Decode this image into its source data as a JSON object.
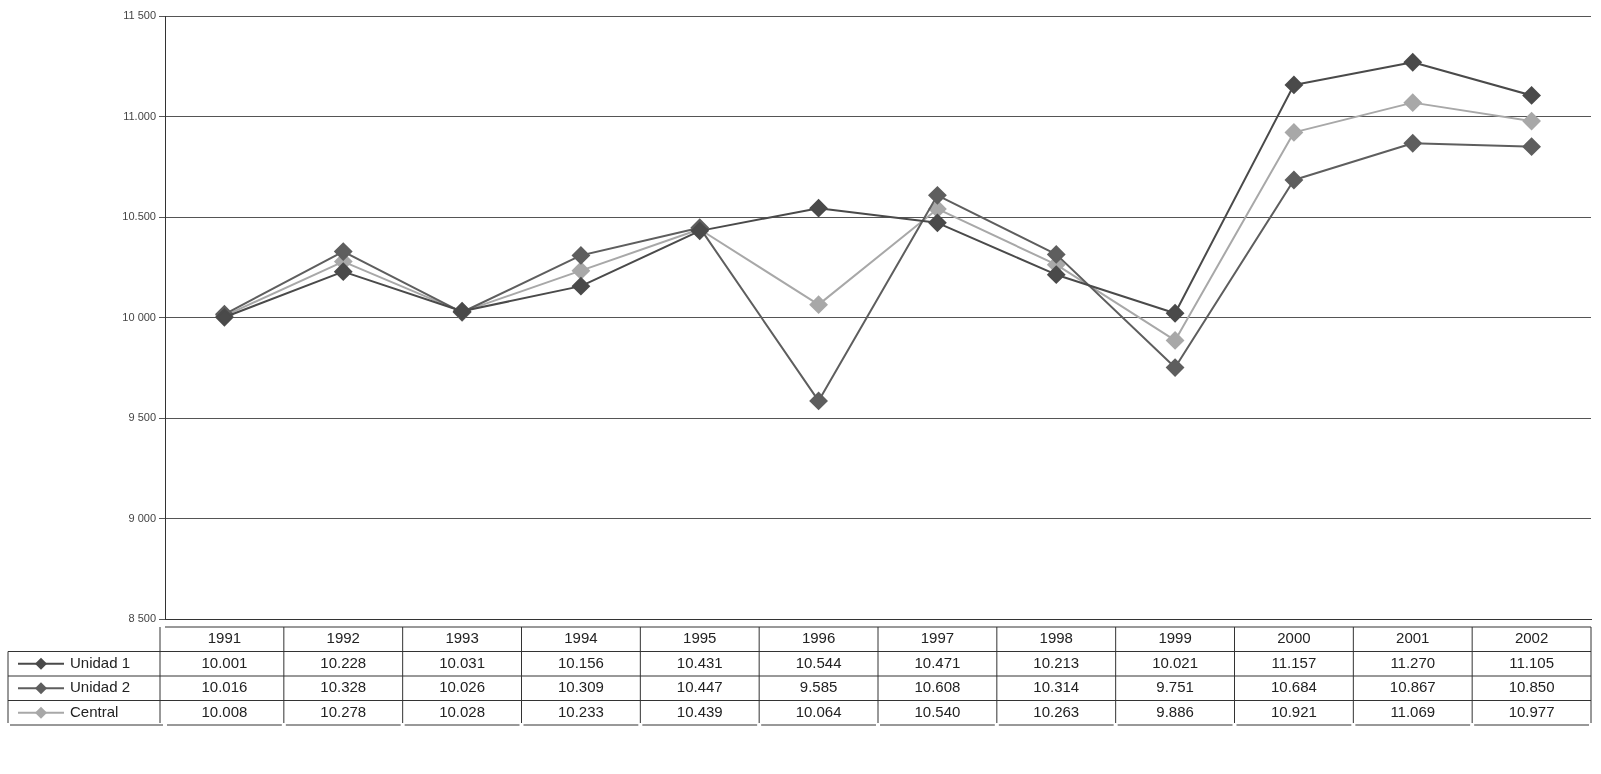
{
  "chart_data": {
    "type": "line",
    "categories": [
      "1991",
      "1992",
      "1993",
      "1994",
      "1995",
      "1996",
      "1997",
      "1998",
      "1999",
      "2000",
      "2001",
      "2002"
    ],
    "series": [
      {
        "name": "Unidad 1",
        "color": "#4a4a4a",
        "values": [
          10001,
          10228,
          10031,
          10156,
          10431,
          10544,
          10471,
          10213,
          10021,
          11157,
          11270,
          11105
        ],
        "value_labels": [
          "10.001",
          "10.228",
          "10.031",
          "10.156",
          "10.431",
          "10.544",
          "10.471",
          "10.213",
          "10.021",
          "11.157",
          "11.270",
          "11.105"
        ]
      },
      {
        "name": "Unidad 2",
        "color": "#5e5e5e",
        "values": [
          10016,
          10328,
          10026,
          10309,
          10447,
          9585,
          10608,
          10314,
          9751,
          10684,
          10867,
          10850
        ],
        "value_labels": [
          "10.016",
          "10.328",
          "10.026",
          "10.309",
          "10.447",
          "9.585",
          "10.608",
          "10.314",
          "9.751",
          "10.684",
          "10.867",
          "10.850"
        ]
      },
      {
        "name": "Central",
        "color": "#a8a8a8",
        "values": [
          10008,
          10278,
          10028,
          10233,
          10439,
          10064,
          10540,
          10263,
          9886,
          10921,
          11069,
          10977
        ],
        "value_labels": [
          "10.008",
          "10.278",
          "10.028",
          "10.233",
          "10.439",
          "10.064",
          "10.540",
          "10.263",
          "9.886",
          "10.921",
          "11.069",
          "10.977"
        ]
      }
    ],
    "ylim": [
      8500,
      11500
    ],
    "yticks": [
      {
        "value": 8500,
        "label": "8 500"
      },
      {
        "value": 9000,
        "label": "9 000"
      },
      {
        "value": 9500,
        "label": "9 500"
      },
      {
        "value": 10000,
        "label": "10 000"
      },
      {
        "value": 10500,
        "label": "10.500"
      },
      {
        "value": 11000,
        "label": "11.000"
      },
      {
        "value": 11500,
        "label": "11 500"
      }
    ],
    "grid": "y",
    "legend": "bottom left",
    "marker": "diamond",
    "line_style": "solid"
  }
}
